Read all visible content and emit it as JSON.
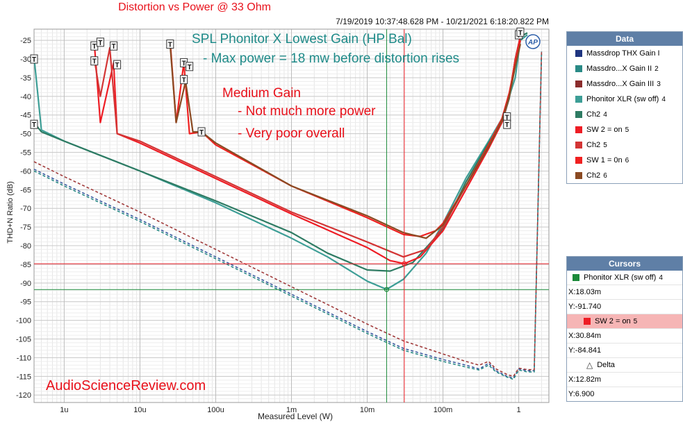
{
  "header": {
    "title": "Distortion vs Power @ 33 Ohm",
    "timestamp": "7/19/2019 10:37:48.628 PM - 10/21/2021 6:18:20.822 PM"
  },
  "annotations": {
    "line1": "SPL Phonitor X Lowest Gain (HP Bal)",
    "line2": "- Max power = 18 mw before distortion rises",
    "red1": "Medium Gain",
    "red2": "- Not much more power",
    "red3": "- Very poor overall",
    "watermark": "AudioScienceReview.com",
    "ap_logo": "AP"
  },
  "legend": {
    "title": "Data",
    "items": [
      {
        "name": "Massdrop THX Gain I",
        "num": "",
        "color": "#1f3580"
      },
      {
        "name": "Massdro...X Gain II",
        "num": "2",
        "color": "#2a8a86"
      },
      {
        "name": "Massdro...X Gain III",
        "num": "3",
        "color": "#8b2c2c"
      },
      {
        "name": "Phonitor XLR (sw off)",
        "num": "4",
        "color": "#3d9e96"
      },
      {
        "name": "Ch2",
        "num": "4",
        "color": "#2e7b63"
      },
      {
        "name": "SW 2 = on",
        "num": "5",
        "color": "#ee1c24"
      },
      {
        "name": "Ch2",
        "num": "5",
        "color": "#d33535"
      },
      {
        "name": "SW 1 = 0n",
        "num": "6",
        "color": "#f02020"
      },
      {
        "name": "Ch2",
        "num": "6",
        "color": "#8a4a22"
      }
    ]
  },
  "cursors": {
    "title": "Cursors",
    "c1": {
      "name": "Phonitor XLR (sw off)",
      "num": "4",
      "x": "X:18.03m",
      "y": "Y:-91.740",
      "color": "#1c8a3a"
    },
    "c2": {
      "name": "SW 2 = on",
      "num": "5",
      "x": "X:30.84m",
      "y": "Y:-84.841",
      "color": "#ee1c24"
    },
    "delta": {
      "name": "Delta",
      "x": "X:12.82m",
      "y": "Y:6.900"
    }
  },
  "chart_data": {
    "type": "line",
    "title": "Distortion vs Power @ 33 Ohm",
    "xlabel": "Measured Level (W)",
    "ylabel": "THD+N Ratio (dB)",
    "x_scale": "log",
    "xlim": [
      4e-07,
      2.5
    ],
    "ylim": [
      -122,
      -22
    ],
    "x_ticks": [
      {
        "v": 1e-06,
        "label": "1u"
      },
      {
        "v": 1e-05,
        "label": "10u"
      },
      {
        "v": 0.0001,
        "label": "100u"
      },
      {
        "v": 0.001,
        "label": "1m"
      },
      {
        "v": 0.01,
        "label": "10m"
      },
      {
        "v": 0.1,
        "label": "100m"
      },
      {
        "v": 1,
        "label": "1"
      }
    ],
    "y_ticks": [
      -25,
      -30,
      -35,
      -40,
      -45,
      -50,
      -55,
      -60,
      -65,
      -70,
      -75,
      -80,
      -85,
      -90,
      -95,
      -100,
      -105,
      -110,
      -115,
      -120
    ],
    "grid": true,
    "legend_position": "right",
    "cursor_lines": [
      {
        "x": 0.01803,
        "y": -91.74,
        "color": "#1c8a3a"
      },
      {
        "x": 0.03084,
        "y": -84.841,
        "color": "#ee1c24"
      }
    ],
    "series": [
      {
        "name": "Massdrop THX Gain I",
        "color": "#3a5aa0",
        "dash": true,
        "points": [
          [
            4e-07,
            -59.5
          ],
          [
            1e-06,
            -63.5
          ],
          [
            1e-05,
            -73
          ],
          [
            0.0001,
            -83
          ],
          [
            0.001,
            -93
          ],
          [
            0.01,
            -103
          ],
          [
            0.03,
            -107.5
          ],
          [
            0.1,
            -110.5
          ],
          [
            0.2,
            -112
          ],
          [
            0.3,
            -113
          ],
          [
            0.4,
            -111.5
          ],
          [
            0.5,
            -113.5
          ],
          [
            0.7,
            -115
          ],
          [
            0.85,
            -115.5
          ],
          [
            1.0,
            -113
          ],
          [
            1.3,
            -113.5
          ],
          [
            1.6,
            -113.5
          ],
          [
            2.0,
            -28
          ]
        ]
      },
      {
        "name": "Massdro...X Gain II",
        "color": "#2a8a86",
        "dash": true,
        "points": [
          [
            4e-07,
            -60
          ],
          [
            1e-06,
            -64
          ],
          [
            1e-05,
            -73.5
          ],
          [
            0.0001,
            -83.5
          ],
          [
            0.001,
            -93.5
          ],
          [
            0.01,
            -103.5
          ],
          [
            0.03,
            -108
          ],
          [
            0.1,
            -111
          ],
          [
            0.2,
            -112.5
          ],
          [
            0.3,
            -113.3
          ],
          [
            0.4,
            -112
          ],
          [
            0.5,
            -113.8
          ],
          [
            0.7,
            -115.2
          ],
          [
            0.85,
            -115.8
          ],
          [
            1.0,
            -113.3
          ],
          [
            1.3,
            -113.8
          ],
          [
            1.6,
            -113.8
          ],
          [
            2.0,
            -28
          ]
        ]
      },
      {
        "name": "Massdro...X Gain III",
        "color": "#a03a3a",
        "dash": true,
        "points": [
          [
            4e-07,
            -57.5
          ],
          [
            1e-06,
            -61.5
          ],
          [
            1e-05,
            -71
          ],
          [
            0.0001,
            -81
          ],
          [
            0.001,
            -91
          ],
          [
            0.01,
            -101
          ],
          [
            0.03,
            -105.5
          ],
          [
            0.1,
            -109
          ],
          [
            0.2,
            -111
          ],
          [
            0.3,
            -112
          ],
          [
            0.4,
            -111
          ],
          [
            0.5,
            -113
          ],
          [
            0.7,
            -114.5
          ],
          [
            0.85,
            -115
          ],
          [
            1.0,
            -112.8
          ],
          [
            1.3,
            -113.2
          ],
          [
            1.6,
            -113.2
          ],
          [
            2.0,
            -28
          ]
        ]
      },
      {
        "name": "Phonitor XLR (sw off)",
        "color": "#3d9e96",
        "dash": false,
        "points": [
          [
            4e-07,
            -29.5
          ],
          [
            5e-07,
            -49
          ],
          [
            1e-06,
            -52
          ],
          [
            1e-05,
            -60
          ],
          [
            0.0001,
            -68.5
          ],
          [
            0.001,
            -78
          ],
          [
            0.003,
            -83
          ],
          [
            0.01,
            -89.5
          ],
          [
            0.018,
            -91.7
          ],
          [
            0.03,
            -89
          ],
          [
            0.06,
            -82
          ],
          [
            0.1,
            -74
          ],
          [
            0.2,
            -62
          ],
          [
            0.4,
            -52
          ],
          [
            0.6,
            -46
          ],
          [
            0.75,
            -40
          ],
          [
            0.9,
            -35
          ],
          [
            1.05,
            -25
          ],
          [
            1.3,
            -23.5
          ]
        ]
      },
      {
        "name": "Ch2",
        "color": "#2e7b63",
        "dash": false,
        "points": [
          [
            4e-07,
            -47
          ],
          [
            5e-07,
            -49.5
          ],
          [
            1e-06,
            -52
          ],
          [
            1e-05,
            -60
          ],
          [
            0.0001,
            -68
          ],
          [
            0.001,
            -76.5
          ],
          [
            0.003,
            -82
          ],
          [
            0.01,
            -86.5
          ],
          [
            0.02,
            -86.8
          ],
          [
            0.04,
            -84.5
          ],
          [
            0.1,
            -75.5
          ],
          [
            0.2,
            -63
          ],
          [
            0.4,
            -52.5
          ],
          [
            0.6,
            -47
          ],
          [
            0.75,
            -40.5
          ],
          [
            0.9,
            -30
          ],
          [
            1.05,
            -24
          ],
          [
            1.3,
            -23
          ]
        ]
      },
      {
        "name": "SW 2 = on",
        "color": "#ee1c24",
        "dash": false,
        "points": [
          [
            2.5e-06,
            -26
          ],
          [
            3e-06,
            -47
          ],
          [
            4.5e-06,
            -31
          ],
          [
            5e-06,
            -50
          ],
          [
            1e-05,
            -52.5
          ],
          [
            0.0001,
            -62
          ],
          [
            0.001,
            -71.5
          ],
          [
            0.01,
            -80.5
          ],
          [
            0.02,
            -84
          ],
          [
            0.031,
            -84.8
          ],
          [
            0.05,
            -83
          ],
          [
            0.1,
            -76
          ],
          [
            0.2,
            -65
          ],
          [
            0.4,
            -54
          ],
          [
            0.6,
            -47
          ],
          [
            0.75,
            -40
          ],
          [
            0.9,
            -30
          ],
          [
            1.05,
            -24
          ]
        ]
      },
      {
        "name": "Ch2",
        "color": "#d33535",
        "dash": false,
        "points": [
          [
            2.5e-06,
            -30
          ],
          [
            3e-06,
            -40
          ],
          [
            4e-06,
            -27
          ],
          [
            5e-06,
            -50
          ],
          [
            1e-05,
            -52
          ],
          [
            0.0001,
            -61.5
          ],
          [
            0.001,
            -71
          ],
          [
            0.01,
            -79
          ],
          [
            0.03,
            -83
          ],
          [
            0.06,
            -81
          ],
          [
            0.1,
            -75
          ],
          [
            0.2,
            -64
          ],
          [
            0.4,
            -53
          ],
          [
            0.6,
            -46
          ],
          [
            0.75,
            -40
          ],
          [
            0.9,
            -30
          ],
          [
            1.05,
            -25
          ]
        ]
      },
      {
        "name": "SW 1 = 0n",
        "color": "#f02020",
        "dash": false,
        "points": [
          [
            2.5e-05,
            -25
          ],
          [
            3e-05,
            -47
          ],
          [
            3.8e-05,
            -31
          ],
          [
            4.5e-05,
            -50
          ],
          [
            6.5e-05,
            -49.5
          ],
          [
            0.0001,
            -53
          ],
          [
            0.001,
            -64
          ],
          [
            0.01,
            -72.5
          ],
          [
            0.03,
            -77
          ],
          [
            0.05,
            -77.5
          ],
          [
            0.08,
            -76
          ],
          [
            0.1,
            -74
          ],
          [
            0.2,
            -64
          ],
          [
            0.4,
            -53
          ],
          [
            0.6,
            -46
          ],
          [
            0.75,
            -39
          ],
          [
            0.9,
            -31
          ],
          [
            1.05,
            -25
          ]
        ]
      },
      {
        "name": "Ch2",
        "color": "#8a4a22",
        "dash": false,
        "points": [
          [
            2.5e-05,
            -26
          ],
          [
            3e-05,
            -47
          ],
          [
            4e-05,
            -36
          ],
          [
            5e-05,
            -49.5
          ],
          [
            6.5e-05,
            -49.5
          ],
          [
            0.0001,
            -52.5
          ],
          [
            0.001,
            -64
          ],
          [
            0.01,
            -72
          ],
          [
            0.03,
            -76.5
          ],
          [
            0.06,
            -78
          ],
          [
            0.1,
            -74.5
          ],
          [
            0.2,
            -64
          ],
          [
            0.4,
            -53.5
          ],
          [
            0.6,
            -46.5
          ],
          [
            0.75,
            -40
          ],
          [
            0.9,
            -32
          ],
          [
            1.05,
            -26
          ]
        ]
      }
    ],
    "markers": [
      [
        4e-07,
        -30
      ],
      [
        4e-07,
        -47.5
      ],
      [
        2.5e-06,
        -26.5
      ],
      [
        2.5e-06,
        -30.5
      ],
      [
        3e-06,
        -25.5
      ],
      [
        4.5e-06,
        -26.5
      ],
      [
        5e-06,
        -31.5
      ],
      [
        2.5e-05,
        -26
      ],
      [
        3.8e-05,
        -31
      ],
      [
        3.8e-05,
        -35.5
      ],
      [
        4.5e-05,
        -32
      ],
      [
        6.5e-05,
        -49.5
      ],
      [
        0.7,
        -45.5
      ],
      [
        0.7,
        -47.5
      ],
      [
        1.0,
        -23.5
      ],
      [
        1.05,
        -22.8
      ]
    ]
  }
}
